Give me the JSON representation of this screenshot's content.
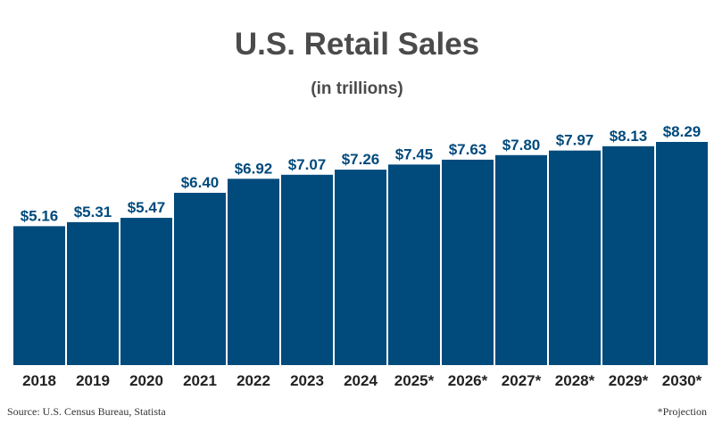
{
  "colors": {
    "bar": "#004a7c",
    "label": "#004a7c",
    "axis_text": "#222222",
    "baseline": "#cfcfcf"
  },
  "footer": {
    "source": "Source: U.S. Census Bureau, Statista",
    "note": "*Projection"
  },
  "chart_data": {
    "type": "bar",
    "title": "U.S. Retail Sales",
    "subtitle": "(in trillions)",
    "xlabel": "",
    "ylabel": "",
    "ylim": [
      0,
      8.29
    ],
    "grid": false,
    "categories": [
      "2018",
      "2019",
      "2020",
      "2021",
      "2022",
      "2023",
      "2024",
      "2025*",
      "2026*",
      "2027*",
      "2028*",
      "2029*",
      "2030*"
    ],
    "values": [
      5.16,
      5.31,
      5.47,
      6.4,
      6.92,
      7.07,
      7.26,
      7.45,
      7.63,
      7.8,
      7.97,
      8.13,
      8.29
    ],
    "data_labels": [
      "$5.16",
      "$5.31",
      "$5.47",
      "$6.40",
      "$6.92",
      "$7.07",
      "$7.26",
      "$7.45",
      "$7.63",
      "$7.80",
      "$7.97",
      "$8.13",
      "$8.29"
    ]
  }
}
